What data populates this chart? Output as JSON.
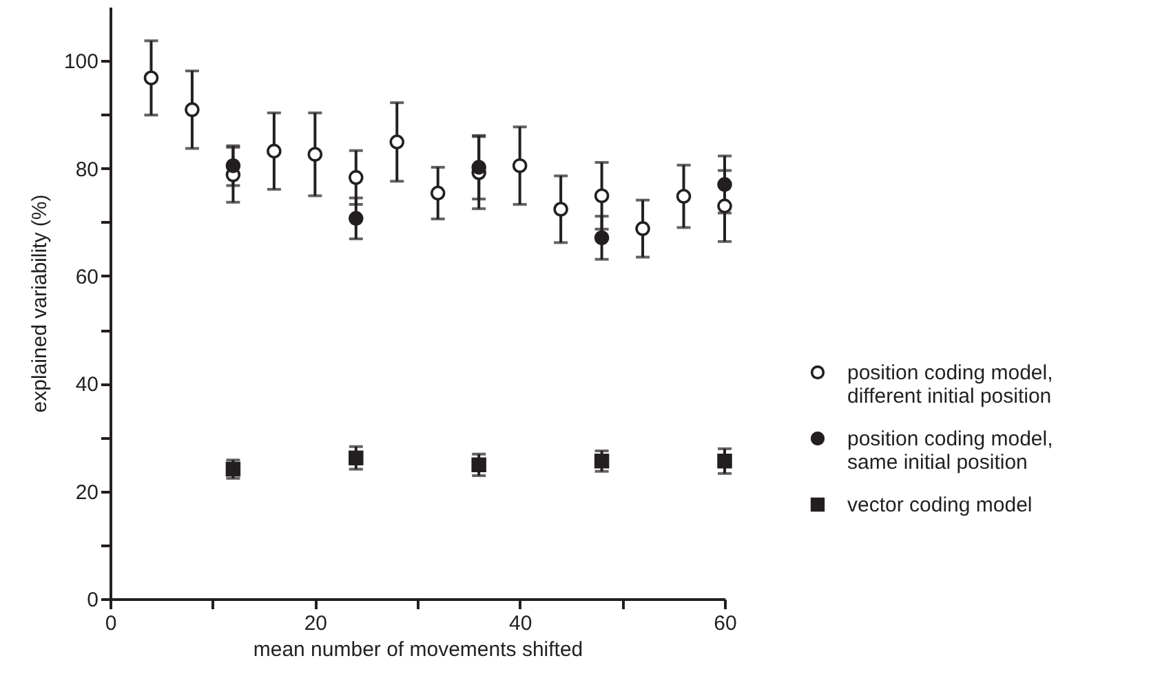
{
  "chart_data": {
    "type": "scatter",
    "xlabel": "mean number of movements shifted",
    "ylabel": "explained variability (%)",
    "xlim": [
      0,
      60
    ],
    "xticks": [
      0,
      {
        "value": 10,
        "label": null
      },
      20,
      {
        "value": 30,
        "label": null
      },
      40,
      {
        "value": 50,
        "label": null
      },
      60
    ],
    "ylim": [
      0,
      110
    ],
    "yticks": [
      0,
      {
        "value": 10,
        "label": null
      },
      20,
      {
        "value": 30,
        "label": null
      },
      40,
      {
        "value": 50,
        "label": null
      },
      60,
      {
        "value": 70,
        "label": null
      },
      80,
      {
        "value": 90,
        "label": null
      },
      100
    ],
    "grid": false,
    "legend": "right",
    "series": [
      {
        "name": "position coding model, different initial position",
        "color": "#ffffff",
        "marker": "circle",
        "x": [
          4,
          8,
          12,
          16,
          20,
          24,
          28,
          32,
          36,
          40,
          44,
          48,
          52,
          56,
          60
        ],
        "values": [
          96.8,
          90.9,
          78.8,
          83.2,
          82.6,
          78.3,
          84.9,
          75.4,
          79.2,
          80.5,
          72.4,
          74.9,
          68.8,
          74.8,
          73
        ],
        "errors": [
          6.9,
          7.2,
          5.1,
          7.1,
          7.7,
          5,
          7.3,
          4.8,
          6.7,
          7.2,
          6.2,
          6.2,
          5.3,
          5.8,
          6.6
        ]
      },
      {
        "name": "position coding model, same initial position",
        "color": "#231f20",
        "marker": "circle",
        "x": [
          12,
          24,
          36,
          48,
          60
        ],
        "values": [
          80.5,
          70.7,
          80.2,
          67.1,
          77
        ],
        "errors": [
          3.7,
          3.8,
          5.9,
          4,
          5.3
        ]
      },
      {
        "name": "vector coding model",
        "color": "#231f20",
        "marker": "square",
        "x": [
          12,
          24,
          36,
          48,
          60
        ],
        "values": [
          24.1,
          26.2,
          24.9,
          25.6,
          25.6
        ],
        "errors": [
          1.7,
          2.1,
          2,
          1.9,
          2.3
        ]
      }
    ]
  }
}
